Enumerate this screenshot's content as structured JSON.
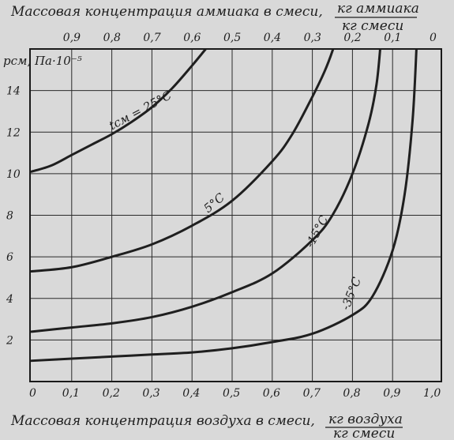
{
  "chart_data": {
    "type": "line",
    "title_top": "Массовая концентрация аммиака в смеси,",
    "title_top_unit_num": "кг аммиака",
    "title_top_unit_den": "кг смеси",
    "xlabel": "Массовая концентрация воздуха в смеси,",
    "xlabel_unit_num": "кг воздуха",
    "xlabel_unit_den": "кг смеси",
    "ylabel": "pсм, Па·10⁻⁵",
    "xlim": [
      0,
      1.0
    ],
    "ylim": [
      0,
      16
    ],
    "x_ticks": [
      "0",
      "0,1",
      "0,2",
      "0,3",
      "0,4",
      "0,5",
      "0,6",
      "0,7",
      "0,8",
      "0,9",
      "1,0"
    ],
    "top_ticks": [
      "0,9",
      "0,8",
      "0,7",
      "0,6",
      "0,5",
      "0,4",
      "0,3",
      "0,2",
      "0,1",
      "0"
    ],
    "y_ticks": [
      "2",
      "4",
      "6",
      "8",
      "10",
      "12",
      "14"
    ],
    "grid": true,
    "series": [
      {
        "name": "tсм = 25°C",
        "x": [
          0,
          0.05,
          0.1,
          0.15,
          0.2,
          0.25,
          0.3,
          0.35,
          0.4,
          0.43,
          0.46
        ],
        "y": [
          10.1,
          10.4,
          10.9,
          11.4,
          11.9,
          12.5,
          13.2,
          14.1,
          15.2,
          15.9,
          16.6
        ]
      },
      {
        "name": "5°C",
        "x": [
          0,
          0.1,
          0.2,
          0.3,
          0.4,
          0.5,
          0.6,
          0.65,
          0.7,
          0.73,
          0.75,
          0.76
        ],
        "y": [
          5.3,
          5.5,
          6.0,
          6.6,
          7.5,
          8.7,
          10.6,
          11.9,
          13.7,
          14.9,
          15.9,
          16.6
        ]
      },
      {
        "name": "-15°C",
        "x": [
          0,
          0.1,
          0.2,
          0.3,
          0.4,
          0.5,
          0.6,
          0.7,
          0.75,
          0.8,
          0.84,
          0.86,
          0.87
        ],
        "y": [
          2.4,
          2.6,
          2.8,
          3.1,
          3.6,
          4.3,
          5.2,
          6.8,
          8.0,
          10.0,
          12.4,
          14.3,
          16.2
        ]
      },
      {
        "name": "-35°C",
        "x": [
          0,
          0.1,
          0.2,
          0.3,
          0.4,
          0.5,
          0.6,
          0.7,
          0.8,
          0.85,
          0.9,
          0.93,
          0.95,
          0.96
        ],
        "y": [
          1.0,
          1.1,
          1.2,
          1.3,
          1.4,
          1.6,
          1.9,
          2.3,
          3.2,
          4.1,
          6.3,
          9.0,
          12.6,
          16.2
        ]
      }
    ],
    "curve_labels": [
      "tсм = 25°C",
      "5°C",
      "-15°C",
      "-35°C"
    ]
  }
}
